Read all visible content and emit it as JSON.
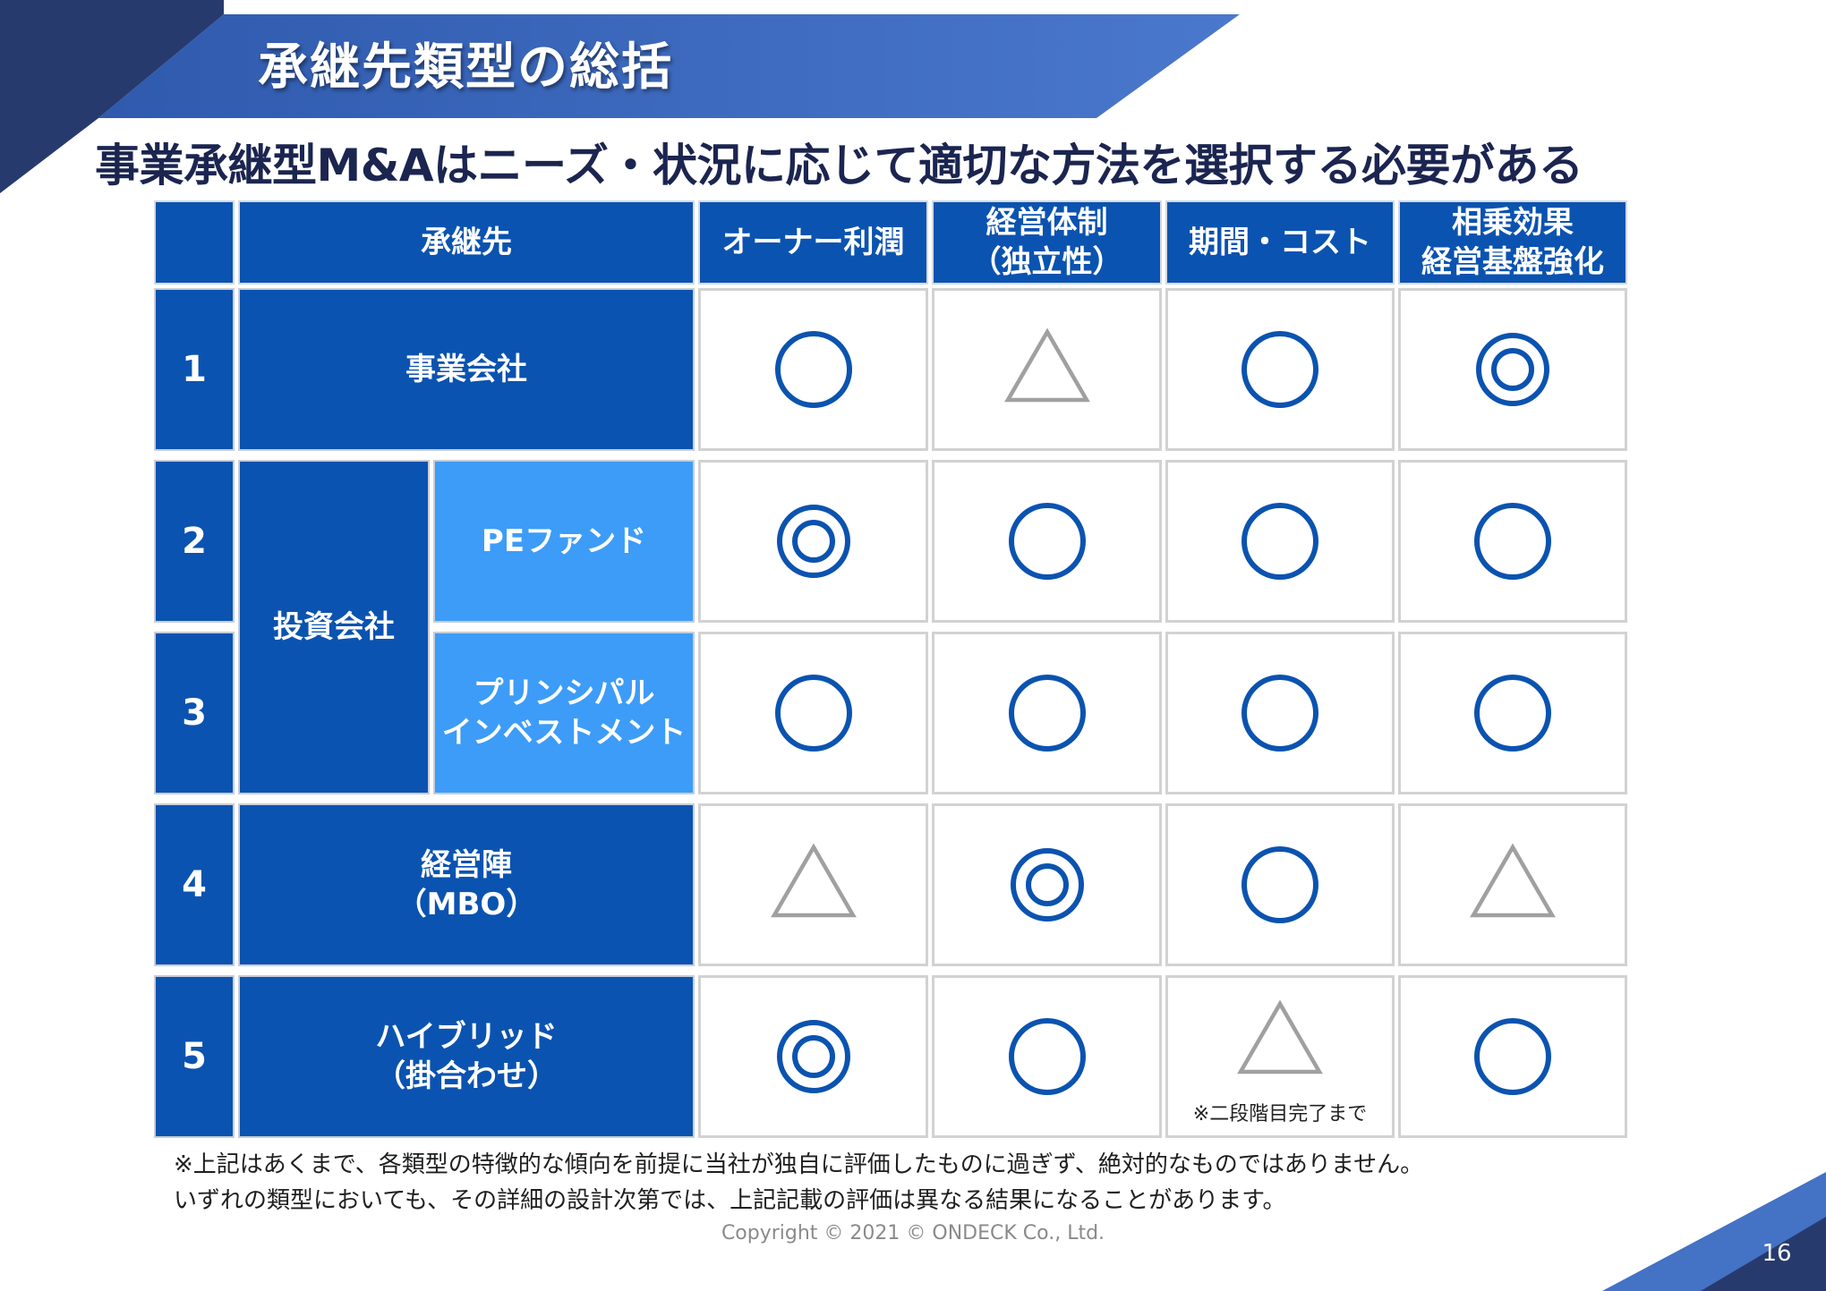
{
  "header": {
    "title": "承継先類型の総括",
    "subtitle": "事業承継型M&Aはニーズ・状況に応じて適切な方法を選択する必要がある"
  },
  "table": {
    "columns": {
      "successor": "承継先",
      "owner_profit": "オーナー利潤",
      "management": "経営体制\n（独立性）",
      "period_cost": "期間・コスト",
      "synergy": "相乗効果\n経営基盤強化"
    },
    "rows": [
      {
        "no": "1",
        "name": "事業会社",
        "ratings": [
          "circle",
          "triangle",
          "circle",
          "double-circle"
        ]
      },
      {
        "no": "2",
        "name": "PEファンド",
        "ratings": [
          "double-circle",
          "circle",
          "circle",
          "circle"
        ]
      },
      {
        "no": "3",
        "name": "プリンシパル\nインベストメント",
        "ratings": [
          "circle",
          "circle",
          "circle",
          "circle"
        ]
      },
      {
        "no": "4",
        "name": "経営陣\n（MBO）",
        "ratings": [
          "triangle",
          "double-circle",
          "circle",
          "triangle"
        ]
      },
      {
        "no": "5",
        "name": "ハイブリッド\n（掛合わせ）",
        "ratings": [
          "double-circle",
          "circle",
          "triangle",
          "circle"
        ]
      }
    ],
    "group_label": "投資会社",
    "cell_note": "※二段階目完了まで"
  },
  "footnote": {
    "line1": "※上記はあくまで、各類型の特徴的な傾向を前提に当社が独自に評価したものに過ぎず、絶対的なものではありません。",
    "line2": "いずれの類型においても、その詳細の設計次第では、上記記載の評価は異なる結果になることがあります。"
  },
  "footer": {
    "copyright": "Copyright © 2021 © ONDECK Co., Ltd.",
    "page_number": "16"
  },
  "colors": {
    "navy": "#273a6e",
    "banner_blue": "#4472c4",
    "header_blue": "#0b53b0",
    "light_blue": "#3d9cf7",
    "symbol_blue": "#0b53b0",
    "symbol_gray": "#a0a0a0"
  }
}
